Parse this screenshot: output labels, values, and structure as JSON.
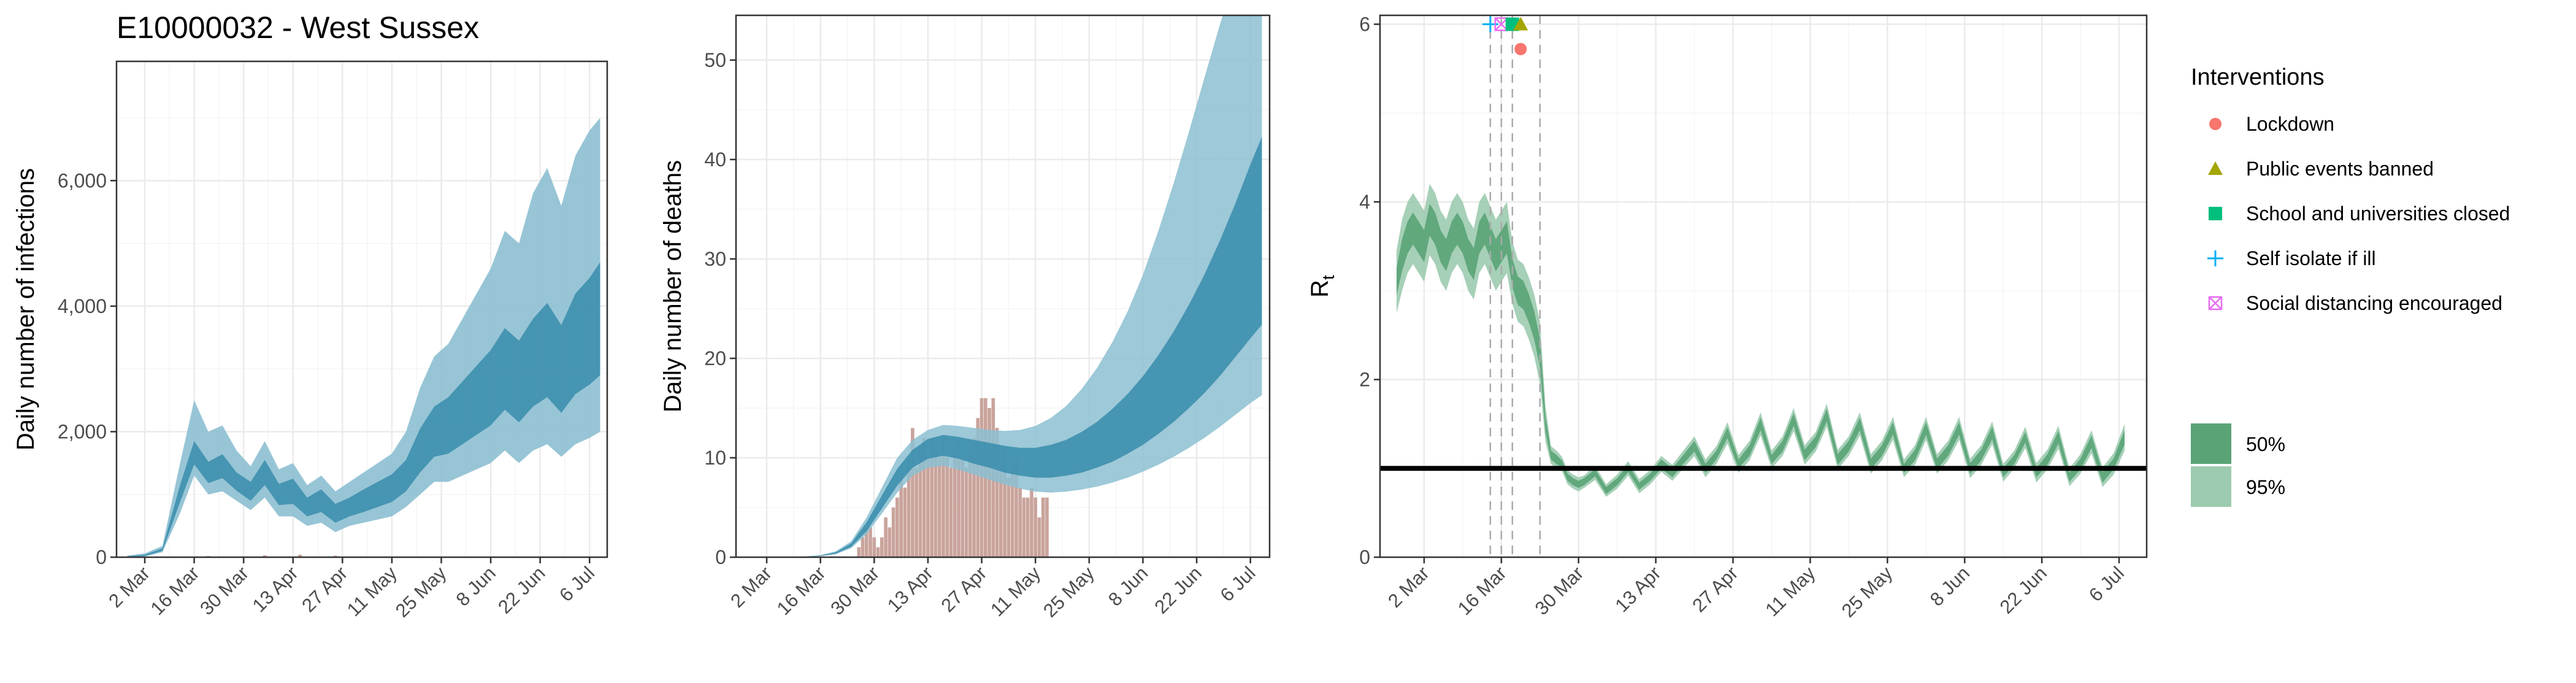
{
  "figure_title": "E10000032 - West Sussex",
  "x_tick_labels": [
    "2 Mar",
    "16 Mar",
    "30 Mar",
    "13 Apr",
    "27 Apr",
    "11 May",
    "25 May",
    "8 Jun",
    "22 Jun",
    "6 Jul"
  ],
  "colors": {
    "infections_outer": "#8cbfd1",
    "infections_inner": "#3d8fae",
    "deaths_outer": "#8cbfd1",
    "deaths_inner": "#3d8fae",
    "death_bars": "#c9a49c",
    "rt_outer": "#9ccbaf",
    "rt_inner": "#5aa377",
    "grid_major": "#ebebeb",
    "grid_minor": "#f5f5f5",
    "lockdown": "#f8766d",
    "public_events": "#a3a500",
    "school": "#00bf7d",
    "self_isolate": "#00b0f6",
    "social_distancing": "#e76bf3"
  },
  "legend": {
    "interventions_title": "Interventions",
    "interventions": [
      {
        "label": "Lockdown",
        "shape": "circle",
        "color": "#f8766d"
      },
      {
        "label": "Public events banned",
        "shape": "triangle",
        "color": "#a3a500"
      },
      {
        "label": "School and universities closed",
        "shape": "square",
        "color": "#00bf7d"
      },
      {
        "label": "Self isolate if ill",
        "shape": "plus",
        "color": "#00b0f6"
      },
      {
        "label": "Social distancing encouraged",
        "shape": "boxx",
        "color": "#e76bf3"
      }
    ],
    "ci": [
      {
        "label": "50%",
        "color": "#5aa377"
      },
      {
        "label": "95%",
        "color": "#9ccbaf"
      }
    ]
  },
  "chart_data": [
    {
      "type": "area",
      "ylabel": "Daily number of infections",
      "x_axis": "date",
      "x_range": [
        "2020-02-23",
        "2020-07-11"
      ],
      "ylim": [
        0,
        7900
      ],
      "y_ticks": [
        0,
        2000,
        4000,
        6000
      ],
      "y_tick_labels": [
        "0",
        "2,000",
        "4,000",
        "6,000"
      ],
      "band_dates": [
        "2020-02-26",
        "2020-03-02",
        "2020-03-07",
        "2020-03-12",
        "2020-03-16",
        "2020-03-20",
        "2020-03-24",
        "2020-03-28",
        "2020-04-01",
        "2020-04-05",
        "2020-04-09",
        "2020-04-13",
        "2020-04-17",
        "2020-04-21",
        "2020-04-25",
        "2020-04-29",
        "2020-05-03",
        "2020-05-07",
        "2020-05-11",
        "2020-05-15",
        "2020-05-19",
        "2020-05-23",
        "2020-05-27",
        "2020-05-31",
        "2020-06-04",
        "2020-06-08",
        "2020-06-12",
        "2020-06-16",
        "2020-06-20",
        "2020-06-24",
        "2020-06-28",
        "2020-07-02",
        "2020-07-06",
        "2020-07-09"
      ],
      "band_mean": [
        10,
        30,
        120,
        1000,
        1650,
        1350,
        1450,
        1200,
        1050,
        1350,
        1000,
        1050,
        800,
        900,
        700,
        800,
        900,
        1000,
        1100,
        1300,
        1700,
        2000,
        2100,
        2300,
        2500,
        2700,
        3000,
        2800,
        3100,
        3300,
        3000,
        3400,
        3600,
        3800
      ],
      "band_95_low": [
        0,
        10,
        80,
        700,
        1300,
        1000,
        1050,
        900,
        750,
        950,
        650,
        650,
        500,
        550,
        400,
        500,
        550,
        600,
        650,
        800,
        1000,
        1200,
        1200,
        1300,
        1400,
        1500,
        1700,
        1500,
        1700,
        1800,
        1600,
        1800,
        1900,
        2000
      ],
      "band_95_high": [
        25,
        60,
        180,
        1500,
        2500,
        2000,
        2100,
        1700,
        1450,
        1850,
        1400,
        1500,
        1150,
        1300,
        1050,
        1200,
        1350,
        1500,
        1650,
        2000,
        2700,
        3200,
        3400,
        3800,
        4200,
        4600,
        5200,
        5000,
        5800,
        6200,
        5600,
        6400,
        6800,
        7000
      ],
      "band_50_low": [
        5,
        20,
        100,
        880,
        1480,
        1180,
        1260,
        1060,
        900,
        1150,
        830,
        850,
        650,
        720,
        550,
        650,
        720,
        800,
        880,
        1050,
        1350,
        1600,
        1650,
        1800,
        1950,
        2100,
        2350,
        2150,
        2400,
        2550,
        2300,
        2600,
        2750,
        2900
      ],
      "band_50_high": [
        15,
        40,
        140,
        1150,
        1850,
        1520,
        1640,
        1350,
        1200,
        1550,
        1170,
        1250,
        950,
        1080,
        850,
        950,
        1080,
        1200,
        1320,
        1550,
        2050,
        2400,
        2550,
        2800,
        3050,
        3300,
        3650,
        3450,
        3800,
        4050,
        3700,
        4200,
        4450,
        4700
      ],
      "reported_cases": {
        "dates": [
          "2020-03-05",
          "2020-03-20",
          "2020-04-05",
          "2020-04-15",
          "2020-04-25"
        ],
        "values": [
          5,
          20,
          30,
          40,
          25
        ]
      }
    },
    {
      "type": "bar",
      "ylabel": "Daily number of deaths",
      "x_axis": "date",
      "x_range": [
        "2020-02-23",
        "2020-07-11"
      ],
      "ylim": [
        0,
        54.5
      ],
      "y_ticks": [
        0,
        10,
        20,
        30,
        40,
        50
      ],
      "y_tick_labels": [
        "0",
        "10",
        "20",
        "30",
        "40",
        "50"
      ],
      "bar_dates": [
        "2020-03-26",
        "2020-03-27",
        "2020-03-28",
        "2020-03-29",
        "2020-03-30",
        "2020-03-31",
        "2020-04-01",
        "2020-04-02",
        "2020-04-03",
        "2020-04-04",
        "2020-04-05",
        "2020-04-06",
        "2020-04-07",
        "2020-04-08",
        "2020-04-09",
        "2020-04-10",
        "2020-04-11",
        "2020-04-12",
        "2020-04-13",
        "2020-04-14",
        "2020-04-15",
        "2020-04-16",
        "2020-04-17",
        "2020-04-18",
        "2020-04-19",
        "2020-04-20",
        "2020-04-21",
        "2020-04-22",
        "2020-04-23",
        "2020-04-24",
        "2020-04-25",
        "2020-04-26",
        "2020-04-27",
        "2020-04-28",
        "2020-04-29",
        "2020-04-30",
        "2020-05-01",
        "2020-05-02",
        "2020-05-03",
        "2020-05-04",
        "2020-05-05",
        "2020-05-06",
        "2020-05-07",
        "2020-05-08",
        "2020-05-09",
        "2020-05-10",
        "2020-05-11",
        "2020-05-12",
        "2020-05-13",
        "2020-05-14"
      ],
      "bar_values": [
        1,
        2,
        3,
        3,
        2,
        1,
        2,
        4,
        3,
        5,
        6,
        8,
        7,
        10,
        13,
        9,
        11,
        12,
        10,
        12,
        11,
        10,
        12,
        10,
        9,
        11,
        12,
        10,
        9,
        11,
        12,
        14,
        16,
        16,
        15,
        16,
        13,
        10,
        11,
        8,
        9,
        10,
        7,
        6,
        6,
        7,
        6,
        4,
        6,
        6
      ],
      "band_dates": [
        "2020-02-26",
        "2020-03-02",
        "2020-03-07",
        "2020-03-12",
        "2020-03-16",
        "2020-03-20",
        "2020-03-24",
        "2020-03-28",
        "2020-04-01",
        "2020-04-05",
        "2020-04-09",
        "2020-04-13",
        "2020-04-17",
        "2020-04-21",
        "2020-04-25",
        "2020-04-29",
        "2020-05-03",
        "2020-05-07",
        "2020-05-11",
        "2020-05-15",
        "2020-05-19",
        "2020-05-23",
        "2020-05-27",
        "2020-05-31",
        "2020-06-04",
        "2020-06-08",
        "2020-06-12",
        "2020-06-16",
        "2020-06-20",
        "2020-06-24",
        "2020-06-28",
        "2020-07-02",
        "2020-07-06",
        "2020-07-09"
      ],
      "band_mean": [
        0,
        0,
        0.02,
        0.05,
        0.15,
        0.4,
        1.2,
        3,
        5.5,
        8,
        9.8,
        10.8,
        11.2,
        11,
        10.6,
        10.2,
        9.8,
        9.5,
        9.4,
        9.5,
        9.8,
        10.3,
        11,
        11.8,
        12.8,
        14,
        15.5,
        17.2,
        19.2,
        21.5,
        24.2,
        27.1,
        30.4,
        32.8
      ],
      "band_95_low": [
        0,
        0,
        0.01,
        0.03,
        0.1,
        0.3,
        0.9,
        2.3,
        4.4,
        6.5,
        8.2,
        9,
        9.2,
        8.8,
        8.3,
        7.8,
        7.3,
        6.9,
        6.6,
        6.5,
        6.6,
        6.8,
        7.1,
        7.5,
        8,
        8.6,
        9.3,
        10.1,
        11,
        12,
        13.1,
        14.3,
        15.5,
        16.3
      ],
      "band_95_high": [
        0,
        0,
        0.03,
        0.08,
        0.2,
        0.6,
        1.6,
        4,
        7,
        10,
        11.8,
        12.8,
        13.3,
        13.2,
        13,
        12.8,
        12.7,
        12.8,
        13.2,
        14,
        15.2,
        16.9,
        19,
        21.6,
        24.7,
        28.4,
        32.8,
        37.6,
        42.8,
        48.2,
        53.5,
        58.5,
        63.5,
        67
      ],
      "band_50_low": [
        0,
        0,
        0.015,
        0.04,
        0.12,
        0.35,
        1.05,
        2.6,
        4.9,
        7.2,
        9,
        9.9,
        10.2,
        9.9,
        9.4,
        9,
        8.5,
        8.2,
        8,
        8,
        8.2,
        8.5,
        9,
        9.6,
        10.4,
        11.3,
        12.4,
        13.6,
        15,
        16.5,
        18.2,
        20.1,
        22,
        23.4
      ],
      "band_50_high": [
        0,
        0,
        0.025,
        0.06,
        0.18,
        0.5,
        1.4,
        3.5,
        6.2,
        8.9,
        10.8,
        11.9,
        12.3,
        12.1,
        11.8,
        11.5,
        11.2,
        11,
        11,
        11.3,
        11.8,
        12.6,
        13.6,
        14.9,
        16.4,
        18.2,
        20.3,
        22.7,
        25.4,
        28.4,
        31.8,
        35.5,
        39.5,
        42.3
      ]
    },
    {
      "type": "area",
      "ylabel": "R",
      "ylabel_subscript": "t",
      "x_axis": "date",
      "x_range": [
        "2020-02-23",
        "2020-07-11"
      ],
      "ylim": [
        0,
        6.1
      ],
      "y_ticks": [
        0,
        2,
        4,
        6
      ],
      "y_tick_labels": [
        "0",
        "2",
        "4",
        "6"
      ],
      "reference_line": 1.0,
      "intervention_dates": [
        "2020-03-14",
        "2020-03-16",
        "2020-03-18",
        "2020-03-23"
      ],
      "intervention_markers": [
        {
          "type": "self_isolate",
          "date": "2020-03-14",
          "y": 6.0
        },
        {
          "type": "social_distancing",
          "date": "2020-03-16",
          "y": 6.0
        },
        {
          "type": "school",
          "date": "2020-03-18",
          "y": 6.0
        },
        {
          "type": "public_events",
          "date": "2020-03-19.5",
          "y": 6.0
        },
        {
          "type": "lockdown",
          "date": "2020-03-19.5",
          "y": 5.72
        }
      ],
      "band_dates": [
        "2020-02-26",
        "2020-02-27",
        "2020-02-28",
        "2020-02-29",
        "2020-03-01",
        "2020-03-02",
        "2020-03-03",
        "2020-03-04",
        "2020-03-05",
        "2020-03-06",
        "2020-03-07",
        "2020-03-08",
        "2020-03-09",
        "2020-03-10",
        "2020-03-11",
        "2020-03-12",
        "2020-03-13",
        "2020-03-14",
        "2020-03-15",
        "2020-03-16",
        "2020-03-17",
        "2020-03-18",
        "2020-03-19",
        "2020-03-20",
        "2020-03-21",
        "2020-03-22",
        "2020-03-23",
        "2020-03-24",
        "2020-03-25",
        "2020-03-26",
        "2020-03-27",
        "2020-03-28",
        "2020-03-29",
        "2020-03-30",
        "2020-03-31",
        "2020-04-02",
        "2020-04-04",
        "2020-04-06",
        "2020-04-08",
        "2020-04-10",
        "2020-04-12",
        "2020-04-14",
        "2020-04-16",
        "2020-04-18",
        "2020-04-20",
        "2020-04-22",
        "2020-04-24",
        "2020-04-26",
        "2020-04-28",
        "2020-04-30",
        "2020-05-02",
        "2020-05-04",
        "2020-05-06",
        "2020-05-08",
        "2020-05-10",
        "2020-05-12",
        "2020-05-14",
        "2020-05-16",
        "2020-05-18",
        "2020-05-20",
        "2020-05-22",
        "2020-05-24",
        "2020-05-26",
        "2020-05-28",
        "2020-05-30",
        "2020-06-01",
        "2020-06-03",
        "2020-06-05",
        "2020-06-07",
        "2020-06-09",
        "2020-06-11",
        "2020-06-13",
        "2020-06-15",
        "2020-06-17",
        "2020-06-19",
        "2020-06-21",
        "2020-06-23",
        "2020-06-25",
        "2020-06-27",
        "2020-06-29",
        "2020-07-01",
        "2020-07-03",
        "2020-07-05",
        "2020-07-07"
      ],
      "band_mean": [
        3.1,
        3.4,
        3.6,
        3.7,
        3.6,
        3.5,
        3.8,
        3.7,
        3.5,
        3.4,
        3.6,
        3.7,
        3.6,
        3.4,
        3.3,
        3.6,
        3.7,
        3.55,
        3.4,
        3.5,
        3.6,
        3.2,
        3.0,
        2.95,
        2.8,
        2.6,
        2.3,
        1.5,
        1.15,
        1.1,
        1.05,
        0.9,
        0.85,
        0.82,
        0.85,
        0.95,
        0.75,
        0.85,
        1.0,
        0.8,
        0.9,
        1.05,
        0.95,
        1.1,
        1.25,
        1.0,
        1.15,
        1.4,
        1.05,
        1.2,
        1.5,
        1.1,
        1.25,
        1.55,
        1.15,
        1.3,
        1.6,
        1.1,
        1.25,
        1.5,
        1.05,
        1.2,
        1.45,
        1.0,
        1.15,
        1.45,
        1.05,
        1.2,
        1.45,
        1.0,
        1.15,
        1.4,
        0.95,
        1.1,
        1.35,
        0.95,
        1.1,
        1.35,
        0.9,
        1.05,
        1.3,
        0.9,
        1.05,
        1.35
      ],
      "band_95_low": [
        2.75,
        3.0,
        3.2,
        3.3,
        3.2,
        3.1,
        3.4,
        3.3,
        3.1,
        3.0,
        3.2,
        3.3,
        3.2,
        3.0,
        2.9,
        3.2,
        3.3,
        3.15,
        3.0,
        3.1,
        3.2,
        2.85,
        2.65,
        2.6,
        2.45,
        2.25,
        1.95,
        1.3,
        1.05,
        1.0,
        0.97,
        0.82,
        0.77,
        0.74,
        0.78,
        0.87,
        0.68,
        0.77,
        0.92,
        0.72,
        0.82,
        0.96,
        0.86,
        1.0,
        1.14,
        0.9,
        1.05,
        1.28,
        0.95,
        1.09,
        1.37,
        1.0,
        1.14,
        1.42,
        1.04,
        1.19,
        1.47,
        0.99,
        1.14,
        1.37,
        0.94,
        1.09,
        1.32,
        0.9,
        1.04,
        1.32,
        0.94,
        1.09,
        1.32,
        0.89,
        1.04,
        1.27,
        0.85,
        1.0,
        1.23,
        0.84,
        0.99,
        1.22,
        0.8,
        0.94,
        1.17,
        0.79,
        0.93,
        1.2
      ],
      "band_95_high": [
        3.45,
        3.8,
        4.0,
        4.1,
        4.0,
        3.9,
        4.2,
        4.1,
        3.9,
        3.8,
        4.0,
        4.1,
        4.0,
        3.8,
        3.7,
        4.0,
        4.1,
        3.95,
        3.8,
        3.9,
        4.0,
        3.55,
        3.35,
        3.3,
        3.15,
        2.95,
        2.65,
        1.7,
        1.25,
        1.2,
        1.13,
        0.98,
        0.93,
        0.9,
        0.92,
        1.03,
        0.82,
        0.93,
        1.08,
        0.88,
        0.98,
        1.14,
        1.04,
        1.2,
        1.36,
        1.1,
        1.25,
        1.52,
        1.15,
        1.31,
        1.63,
        1.2,
        1.36,
        1.68,
        1.26,
        1.41,
        1.73,
        1.21,
        1.36,
        1.63,
        1.16,
        1.31,
        1.58,
        1.1,
        1.26,
        1.58,
        1.16,
        1.31,
        1.58,
        1.11,
        1.26,
        1.53,
        1.05,
        1.2,
        1.47,
        1.06,
        1.21,
        1.48,
        1.0,
        1.16,
        1.43,
        1.01,
        1.17,
        1.5
      ],
      "band_50_low": [
        2.95,
        3.22,
        3.42,
        3.52,
        3.42,
        3.32,
        3.62,
        3.52,
        3.32,
        3.22,
        3.42,
        3.52,
        3.42,
        3.22,
        3.12,
        3.42,
        3.52,
        3.37,
        3.22,
        3.32,
        3.42,
        3.04,
        2.84,
        2.79,
        2.64,
        2.44,
        2.14,
        1.41,
        1.1,
        1.05,
        1.01,
        0.86,
        0.81,
        0.78,
        0.81,
        0.91,
        0.71,
        0.81,
        0.96,
        0.76,
        0.86,
        1.0,
        0.9,
        1.05,
        1.19,
        0.95,
        1.1,
        1.34,
        1.0,
        1.14,
        1.43,
        1.05,
        1.19,
        1.48,
        1.09,
        1.24,
        1.53,
        1.04,
        1.19,
        1.43,
        0.99,
        1.14,
        1.38,
        0.95,
        1.09,
        1.38,
        0.99,
        1.14,
        1.38,
        0.94,
        1.09,
        1.33,
        0.9,
        1.05,
        1.29,
        0.9,
        1.04,
        1.28,
        0.85,
        0.99,
        1.23,
        0.84,
        0.99,
        1.27
      ],
      "band_50_high": [
        3.25,
        3.58,
        3.78,
        3.88,
        3.78,
        3.68,
        3.98,
        3.88,
        3.68,
        3.58,
        3.78,
        3.88,
        3.78,
        3.58,
        3.48,
        3.78,
        3.88,
        3.73,
        3.58,
        3.68,
        3.78,
        3.36,
        3.16,
        3.11,
        2.96,
        2.76,
        2.46,
        1.59,
        1.2,
        1.15,
        1.09,
        0.94,
        0.89,
        0.86,
        0.89,
        0.99,
        0.79,
        0.89,
        1.04,
        0.84,
        0.94,
        1.1,
        1.0,
        1.15,
        1.31,
        1.05,
        1.2,
        1.46,
        1.1,
        1.26,
        1.57,
        1.15,
        1.31,
        1.62,
        1.21,
        1.36,
        1.67,
        1.16,
        1.31,
        1.57,
        1.11,
        1.26,
        1.52,
        1.05,
        1.21,
        1.52,
        1.11,
        1.26,
        1.52,
        1.06,
        1.21,
        1.47,
        1.0,
        1.15,
        1.41,
        1.0,
        1.16,
        1.42,
        0.95,
        1.11,
        1.37,
        0.96,
        1.11,
        1.43
      ]
    }
  ]
}
